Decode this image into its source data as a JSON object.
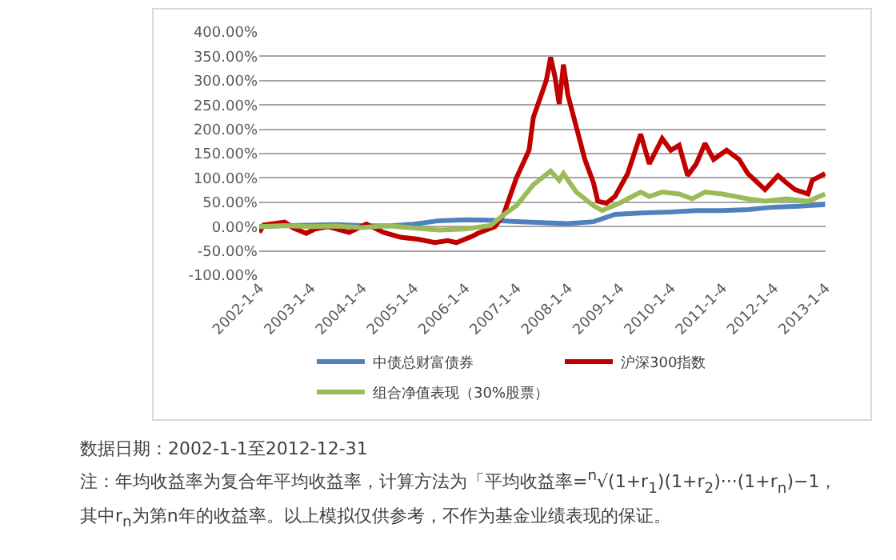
{
  "chart_data": {
    "type": "line",
    "xlim": [
      "2002-01-01",
      "2013-01-04"
    ],
    "xticks": [
      {
        "value": "2002-01-04",
        "label": "2002-1-4"
      },
      {
        "value": "2003-01-04",
        "label": "2003-1-4"
      },
      {
        "value": "2004-01-04",
        "label": "2004-1-4"
      },
      {
        "value": "2005-01-04",
        "label": "2005-1-4"
      },
      {
        "value": "2006-01-04",
        "label": "2006-1-4"
      },
      {
        "value": "2007-01-04",
        "label": "2007-1-4"
      },
      {
        "value": "2008-01-04",
        "label": "2008-1-4"
      },
      {
        "value": "2009-01-04",
        "label": "2009-1-4"
      },
      {
        "value": "2010-01-04",
        "label": "2010-1-4"
      },
      {
        "value": "2011-01-04",
        "label": "2011-1-4"
      },
      {
        "value": "2012-01-04",
        "label": "2012-1-4"
      },
      {
        "value": "2013-01-04",
        "label": "2013-1-4"
      }
    ],
    "ylim": [
      -100,
      400
    ],
    "yticks": [
      {
        "value": -100,
        "label": "-100.00%"
      },
      {
        "value": -50,
        "label": "-50.00%"
      },
      {
        "value": 0,
        "label": "0.00%"
      },
      {
        "value": 50,
        "label": "50.00%"
      },
      {
        "value": 100,
        "label": "100.00%"
      },
      {
        "value": 150,
        "label": "150.00%"
      },
      {
        "value": 200,
        "label": "200.00%"
      },
      {
        "value": 250,
        "label": "250.00%"
      },
      {
        "value": 300,
        "label": "300.00%"
      },
      {
        "value": 350,
        "label": "350.00%"
      },
      {
        "value": 400,
        "label": "400.00%"
      }
    ],
    "grid": "y",
    "legend": "bottom",
    "marker": "none",
    "line_style": "solid",
    "series": [
      {
        "name": "中债总财富债券",
        "color": "#4f81bd",
        "x": [
          "2002-01",
          "2002-07",
          "2003-01",
          "2003-07",
          "2004-01",
          "2004-07",
          "2005-01",
          "2005-07",
          "2006-01",
          "2006-07",
          "2007-01",
          "2007-07",
          "2008-01",
          "2008-07",
          "2008-12",
          "2009-06",
          "2010-01",
          "2010-07",
          "2011-01",
          "2011-07",
          "2012-01",
          "2012-07",
          "2012-12-31"
        ],
        "values": [
          0,
          2,
          3,
          4,
          2,
          1,
          5,
          12,
          14,
          13,
          10,
          8,
          6,
          10,
          25,
          28,
          30,
          33,
          33,
          35,
          40,
          42,
          45
        ]
      },
      {
        "name": "沪深300指数",
        "color": "#c00000",
        "x": [
          "2002-01",
          "2002-02",
          "2002-07",
          "2002-09",
          "2002-12",
          "2003-02",
          "2003-05",
          "2003-10",
          "2004-02",
          "2004-06",
          "2004-10",
          "2005-02",
          "2005-06",
          "2005-09",
          "2005-11",
          "2006-03",
          "2006-04",
          "2006-08",
          "2006-10",
          "2007-01",
          "2007-04",
          "2007-05",
          "2007-08",
          "2007-09",
          "2007-10",
          "2007-11",
          "2007-12",
          "2008-01",
          "2008-03",
          "2008-05",
          "2008-07",
          "2008-08",
          "2008-10",
          "2008-12",
          "2009-03",
          "2009-06",
          "2009-08",
          "2009-11",
          "2010-01",
          "2010-03",
          "2010-05",
          "2010-07",
          "2010-09",
          "2010-11",
          "2011-02",
          "2011-05",
          "2011-07",
          "2011-11",
          "2012-02",
          "2012-04",
          "2012-06",
          "2012-09",
          "2012-10",
          "2012-12-31"
        ],
        "values": [
          -12,
          3,
          9,
          -3,
          -14,
          -5,
          0,
          -12,
          5,
          -12,
          -22,
          -26,
          -33,
          -29,
          -33,
          -19,
          -14,
          0,
          24,
          100,
          157,
          224,
          300,
          348,
          309,
          252,
          333,
          271,
          205,
          138,
          90,
          52,
          48,
          62,
          109,
          190,
          129,
          181,
          157,
          167,
          105,
          129,
          171,
          138,
          157,
          138,
          109,
          76,
          105,
          90,
          76,
          67,
          95,
          109
        ]
      },
      {
        "name": "组合净值表现（30%股票）",
        "color": "#9bbb59",
        "x": [
          "2002-01",
          "2002-07",
          "2003-01",
          "2003-07",
          "2004-01",
          "2004-07",
          "2005-01",
          "2005-07",
          "2006-01",
          "2006-07",
          "2006-10",
          "2007-01",
          "2007-05",
          "2007-09",
          "2007-11",
          "2007-12",
          "2008-03",
          "2008-07",
          "2008-09",
          "2009-01",
          "2009-06",
          "2009-08",
          "2009-11",
          "2010-03",
          "2010-06",
          "2010-09",
          "2011-01",
          "2011-07",
          "2011-11",
          "2012-04",
          "2012-09",
          "2012-12-31"
        ],
        "values": [
          0,
          2,
          0,
          1,
          -2,
          2,
          -3,
          -7,
          -5,
          2,
          24,
          43,
          86,
          114,
          95,
          109,
          71,
          43,
          33,
          48,
          71,
          62,
          71,
          67,
          57,
          71,
          67,
          57,
          52,
          57,
          52,
          67
        ]
      }
    ],
    "annotations": [
      "数据日期：2002-1-1至2012-12-31",
      "注：年均收益率为复合年平均收益率，计算方法为「平均收益率=$^{n}$√(1+r$_{1}$)(1+r$_{2}$)···(1+r$_{n}$)−1，",
      "其中r$_{n}$为第n年的收益率。以上模拟仅供参考，不作为基金业绩表现的保证。"
    ]
  }
}
